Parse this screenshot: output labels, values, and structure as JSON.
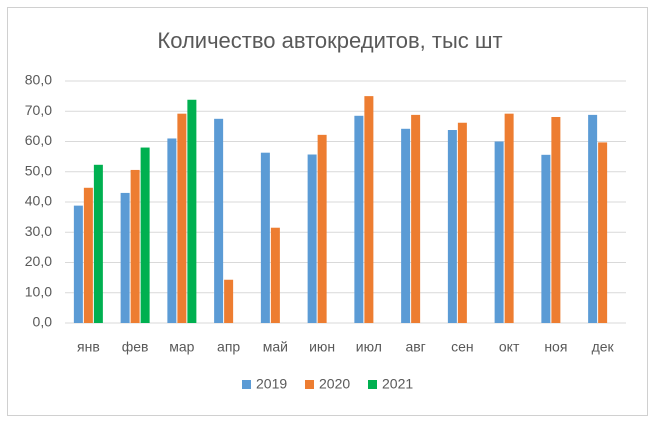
{
  "chart_data": {
    "type": "bar",
    "title": "Количество автокредитов, тыс шт",
    "categories": [
      "янв",
      "фев",
      "мар",
      "апр",
      "май",
      "июн",
      "июл",
      "авг",
      "сен",
      "окт",
      "ноя",
      "дек"
    ],
    "series": [
      {
        "name": "2019",
        "color": "#5b9bd5",
        "values": [
          38.8,
          43.0,
          61.0,
          67.5,
          56.3,
          55.7,
          68.5,
          64.2,
          63.8,
          60.0,
          55.6,
          68.8
        ]
      },
      {
        "name": "2020",
        "color": "#ed7d31",
        "values": [
          44.7,
          50.6,
          69.2,
          14.3,
          31.5,
          62.2,
          75.0,
          68.8,
          66.2,
          69.2,
          68.1,
          59.7
        ]
      },
      {
        "name": "2021",
        "color": "#00b050",
        "values": [
          52.3,
          58.0,
          73.8,
          null,
          null,
          null,
          null,
          null,
          null,
          null,
          null,
          null
        ]
      }
    ],
    "ylim": [
      0,
      80
    ],
    "yticks": [
      {
        "value": 0,
        "label": "0,0"
      },
      {
        "value": 10,
        "label": "10,0"
      },
      {
        "value": 20,
        "label": "20,0"
      },
      {
        "value": 30,
        "label": "30,0"
      },
      {
        "value": 40,
        "label": "40,0"
      },
      {
        "value": 50,
        "label": "50,0"
      },
      {
        "value": 60,
        "label": "60,0"
      },
      {
        "value": 70,
        "label": "70,0"
      },
      {
        "value": 80,
        "label": "80,0"
      }
    ],
    "grid": true,
    "legend": "bottom"
  }
}
